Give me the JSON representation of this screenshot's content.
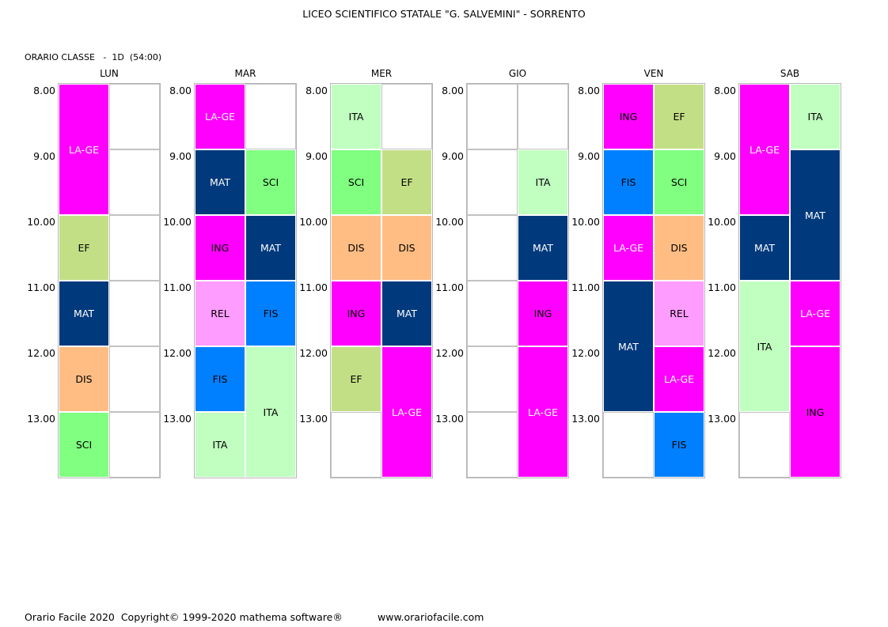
{
  "title": "LICEO SCIENTIFICO STATALE \"G. SALVEMINI\" - SORRENTO",
  "class_label": "ORARIO CLASSE   -  1D  (54:00)",
  "times": [
    "8.00",
    "9.00",
    "10.00",
    "11.00",
    "12.00",
    "13.00"
  ],
  "subject_colors": {
    "LA-GE": {
      "bg": "#ff00ff",
      "fg": "#ffffff"
    },
    "EF": {
      "bg": "#c3df86",
      "fg": "#000000"
    },
    "MAT": {
      "bg": "#00397c",
      "fg": "#ffffff"
    },
    "DIS": {
      "bg": "#ffbd84",
      "fg": "#000000"
    },
    "SCI": {
      "bg": "#80ff80",
      "fg": "#000000"
    },
    "ING": {
      "bg": "#ff00ff",
      "fg": "#000000"
    },
    "ITA": {
      "bg": "#c0ffc0",
      "fg": "#000000"
    },
    "REL": {
      "bg": "#ff9cff",
      "fg": "#000000"
    },
    "FIS": {
      "bg": "#0080ff",
      "fg": "#000000"
    }
  },
  "days": [
    {
      "name": "LUN",
      "blocks": [
        {
          "subject": "LA-GE",
          "col": 0,
          "start": 0,
          "span": 2
        },
        {
          "subject": "EF",
          "col": 0,
          "start": 2,
          "span": 1
        },
        {
          "subject": "MAT",
          "col": 0,
          "start": 3,
          "span": 1
        },
        {
          "subject": "DIS",
          "col": 0,
          "start": 4,
          "span": 1
        },
        {
          "subject": "SCI",
          "col": 0,
          "start": 5,
          "span": 1
        }
      ]
    },
    {
      "name": "MAR",
      "blocks": [
        {
          "subject": "LA-GE",
          "col": 0,
          "start": 0,
          "span": 1
        },
        {
          "subject": "MAT",
          "col": 0,
          "start": 1,
          "span": 1
        },
        {
          "subject": "SCI",
          "col": 1,
          "start": 1,
          "span": 1
        },
        {
          "subject": "ING",
          "col": 0,
          "start": 2,
          "span": 1
        },
        {
          "subject": "MAT",
          "col": 1,
          "start": 2,
          "span": 1
        },
        {
          "subject": "REL",
          "col": 0,
          "start": 3,
          "span": 1
        },
        {
          "subject": "FIS",
          "col": 1,
          "start": 3,
          "span": 1
        },
        {
          "subject": "FIS",
          "col": 0,
          "start": 4,
          "span": 1
        },
        {
          "subject": "ITA",
          "col": 1,
          "start": 4,
          "span": 2
        },
        {
          "subject": "ITA",
          "col": 0,
          "start": 5,
          "span": 1
        }
      ]
    },
    {
      "name": "MER",
      "blocks": [
        {
          "subject": "ITA",
          "col": 0,
          "start": 0,
          "span": 1
        },
        {
          "subject": "SCI",
          "col": 0,
          "start": 1,
          "span": 1
        },
        {
          "subject": "EF",
          "col": 1,
          "start": 1,
          "span": 1
        },
        {
          "subject": "DIS",
          "col": 0,
          "start": 2,
          "span": 1
        },
        {
          "subject": "DIS",
          "col": 1,
          "start": 2,
          "span": 1
        },
        {
          "subject": "ING",
          "col": 0,
          "start": 3,
          "span": 1
        },
        {
          "subject": "MAT",
          "col": 1,
          "start": 3,
          "span": 1
        },
        {
          "subject": "EF",
          "col": 0,
          "start": 4,
          "span": 1
        },
        {
          "subject": "LA-GE",
          "col": 1,
          "start": 4,
          "span": 2
        }
      ]
    },
    {
      "name": "GIO",
      "blocks": [
        {
          "subject": "ITA",
          "col": 1,
          "start": 1,
          "span": 1
        },
        {
          "subject": "MAT",
          "col": 1,
          "start": 2,
          "span": 1
        },
        {
          "subject": "ING",
          "col": 1,
          "start": 3,
          "span": 1
        },
        {
          "subject": "LA-GE",
          "col": 1,
          "start": 4,
          "span": 2
        }
      ]
    },
    {
      "name": "VEN",
      "blocks": [
        {
          "subject": "ING",
          "col": 0,
          "start": 0,
          "span": 1
        },
        {
          "subject": "EF",
          "col": 1,
          "start": 0,
          "span": 1
        },
        {
          "subject": "FIS",
          "col": 0,
          "start": 1,
          "span": 1
        },
        {
          "subject": "SCI",
          "col": 1,
          "start": 1,
          "span": 1
        },
        {
          "subject": "LA-GE",
          "col": 0,
          "start": 2,
          "span": 1
        },
        {
          "subject": "DIS",
          "col": 1,
          "start": 2,
          "span": 1
        },
        {
          "subject": "MAT",
          "col": 0,
          "start": 3,
          "span": 2
        },
        {
          "subject": "REL",
          "col": 1,
          "start": 3,
          "span": 1
        },
        {
          "subject": "LA-GE",
          "col": 1,
          "start": 4,
          "span": 1
        },
        {
          "subject": "FIS",
          "col": 1,
          "start": 5,
          "span": 1
        }
      ]
    },
    {
      "name": "SAB",
      "blocks": [
        {
          "subject": "LA-GE",
          "col": 0,
          "start": 0,
          "span": 2
        },
        {
          "subject": "ITA",
          "col": 1,
          "start": 0,
          "span": 1
        },
        {
          "subject": "MAT",
          "col": 1,
          "start": 1,
          "span": 2
        },
        {
          "subject": "MAT",
          "col": 0,
          "start": 2,
          "span": 1
        },
        {
          "subject": "ITA",
          "col": 0,
          "start": 3,
          "span": 2
        },
        {
          "subject": "LA-GE",
          "col": 1,
          "start": 3,
          "span": 1
        },
        {
          "subject": "ING",
          "col": 1,
          "start": 4,
          "span": 2
        }
      ]
    }
  ],
  "footer": {
    "copyright": "Orario Facile 2020  Copyright© 1999-2020 mathema software®",
    "url": "www.orariofacile.com"
  }
}
